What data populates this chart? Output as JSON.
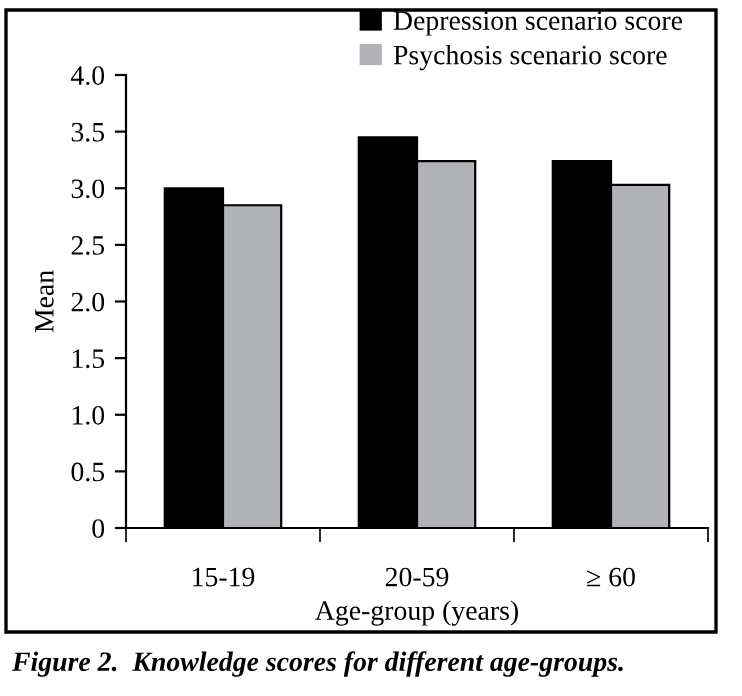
{
  "chart_data": {
    "type": "bar",
    "xlabel": "Age-group (years)",
    "ylabel": "Mean",
    "categories": [
      "15-19",
      "20-59",
      "≥ 60"
    ],
    "series": [
      {
        "name": "Depression scenario score",
        "color": "#000000",
        "values": [
          3.0,
          3.45,
          3.24
        ]
      },
      {
        "name": "Psychosis scenario score",
        "color": "#b1b3b6",
        "values": [
          2.85,
          3.24,
          3.03
        ]
      }
    ],
    "ylim": [
      0,
      4
    ],
    "yticks": [
      {
        "value": 0,
        "label": "0"
      },
      {
        "value": 0.5,
        "label": "0.5"
      },
      {
        "value": 1,
        "label": "1.0"
      },
      {
        "value": 1.5,
        "label": "1.5"
      },
      {
        "value": 2,
        "label": "2.0"
      },
      {
        "value": 2.5,
        "label": "2.5"
      },
      {
        "value": 3,
        "label": "3.0"
      },
      {
        "value": 3.5,
        "label": "3.5"
      },
      {
        "value": 4,
        "label": "4.0"
      }
    ],
    "grid": false,
    "legend": "top right",
    "annotations": [
      "Figure 2.  Knowledge scores for different age-groups."
    ]
  }
}
